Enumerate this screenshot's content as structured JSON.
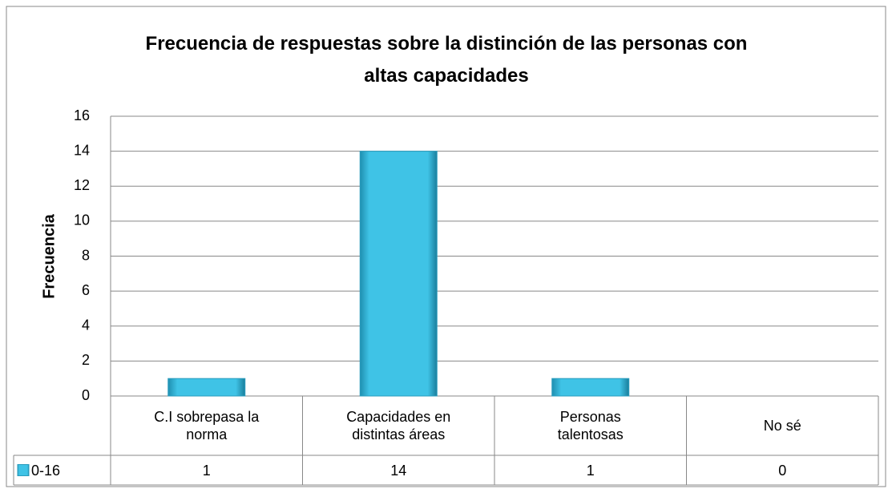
{
  "chart_data": {
    "type": "bar",
    "title": "Frecuencia de respuestas sobre la distinción de las personas con altas capacidades",
    "y_label": "Frecuencia",
    "categories": [
      "C.I sobrepasa la norma",
      "Capacidades en distintas áreas",
      "Personas talentosas",
      "No sé"
    ],
    "series": [
      {
        "name": "0-16",
        "color": "#3fc3e6",
        "values": [
          1,
          14,
          1,
          0
        ]
      }
    ],
    "ylim": [
      0,
      16
    ],
    "yticks": [
      0,
      2,
      4,
      6,
      8,
      10,
      12,
      14,
      16
    ],
    "grid": true,
    "data_table": true
  }
}
